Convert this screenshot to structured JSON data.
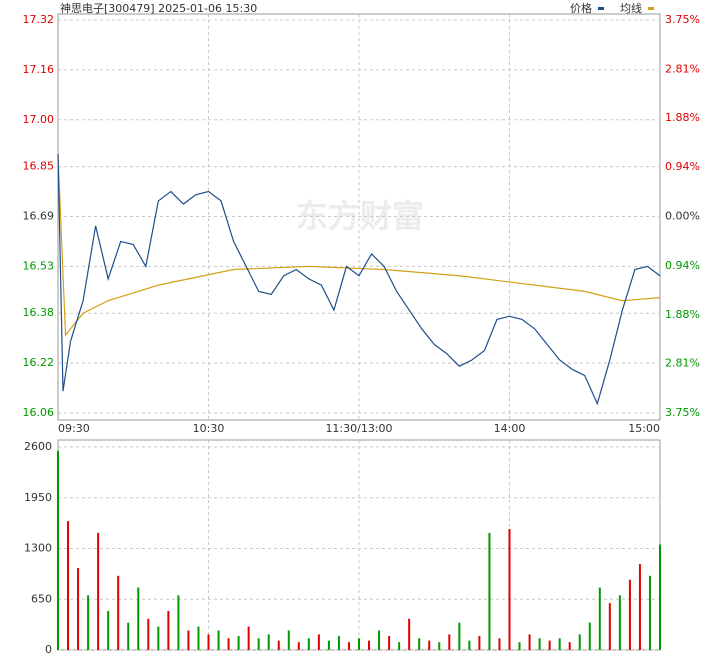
{
  "chart_data": [
    {
      "type": "line",
      "title": "神思电子[300479] 2025-01-06 15:30",
      "watermark": "东方财富",
      "up_color": "#e00000",
      "down_color": "#009900",
      "grid": true,
      "xlim": [
        0,
        240
      ],
      "xticks": [
        {
          "value": 0,
          "label": "09:30"
        },
        {
          "value": 60,
          "label": "10:30"
        },
        {
          "value": 120,
          "label": "11:30/13:00"
        },
        {
          "value": 180,
          "label": "14:00"
        },
        {
          "value": 240,
          "label": "15:00"
        }
      ],
      "ylim": [
        16.06,
        17.32
      ],
      "yticks": [
        16.06,
        16.22,
        16.38,
        16.53,
        16.69,
        16.85,
        {
          "value": 17,
          "label": "17.00"
        },
        17.16,
        17.32
      ],
      "y2lim": [
        -3.75,
        3.75
      ],
      "y2ticks": [
        {
          "value": -3.75,
          "label": "3.75%"
        },
        {
          "value": -2.81,
          "label": "2.81%"
        },
        {
          "value": -1.88,
          "label": "1.88%"
        },
        {
          "value": -0.94,
          "label": "0.94%"
        },
        {
          "value": 0,
          "label": "0.00%"
        },
        {
          "value": 0.94,
          "label": "0.94%"
        },
        {
          "value": 1.88,
          "label": "1.88%"
        },
        {
          "value": 2.81,
          "label": "2.81%"
        },
        {
          "value": 3.75,
          "label": "3.75%"
        }
      ],
      "series": [
        {
          "name": "价格",
          "color": "#1f4e8c",
          "x": [
            0,
            2,
            5,
            10,
            15,
            20,
            25,
            30,
            35,
            40,
            45,
            50,
            55,
            60,
            65,
            70,
            75,
            80,
            85,
            90,
            95,
            100,
            105,
            110,
            115,
            120,
            125,
            130,
            135,
            140,
            145,
            150,
            155,
            160,
            165,
            170,
            175,
            180,
            185,
            190,
            195,
            200,
            205,
            210,
            215,
            220,
            225,
            230,
            235,
            240
          ],
          "values": [
            16.89,
            16.13,
            16.29,
            16.42,
            16.66,
            16.49,
            16.61,
            16.6,
            16.53,
            16.74,
            16.77,
            16.73,
            16.76,
            16.77,
            16.74,
            16.61,
            16.53,
            16.45,
            16.44,
            16.5,
            16.52,
            16.49,
            16.47,
            16.39,
            16.53,
            16.5,
            16.57,
            16.53,
            16.45,
            16.39,
            16.33,
            16.28,
            16.25,
            16.21,
            16.23,
            16.26,
            16.36,
            16.37,
            16.36,
            16.33,
            16.28,
            16.23,
            16.2,
            16.18,
            16.09,
            16.23,
            16.39,
            16.52,
            16.53,
            16.5
          ]
        },
        {
          "name": "均线",
          "color": "#d4a017",
          "x": [
            0,
            3,
            10,
            20,
            40,
            70,
            100,
            130,
            160,
            190,
            210,
            225,
            240
          ],
          "values": [
            16.89,
            16.31,
            16.38,
            16.42,
            16.47,
            16.52,
            16.53,
            16.52,
            16.5,
            16.47,
            16.45,
            16.42,
            16.43
          ]
        }
      ]
    },
    {
      "type": "bar",
      "xlim": [
        0,
        240
      ],
      "ylim": [
        0,
        2600
      ],
      "yticks": [
        0,
        650,
        1300,
        1950,
        2600
      ],
      "x": [
        0,
        4,
        8,
        12,
        16,
        20,
        24,
        28,
        32,
        36,
        40,
        44,
        48,
        52,
        56,
        60,
        64,
        68,
        72,
        76,
        80,
        84,
        88,
        92,
        96,
        100,
        104,
        108,
        112,
        116,
        120,
        124,
        128,
        132,
        136,
        140,
        144,
        148,
        152,
        156,
        160,
        164,
        168,
        172,
        176,
        180,
        184,
        188,
        192,
        196,
        200,
        204,
        208,
        212,
        216,
        220,
        224,
        228,
        232,
        236,
        240
      ],
      "values": [
        2550,
        1650,
        1050,
        700,
        1500,
        500,
        950,
        350,
        800,
        400,
        300,
        500,
        700,
        250,
        300,
        200,
        250,
        150,
        180,
        300,
        150,
        200,
        120,
        250,
        100,
        150,
        200,
        120,
        180,
        100,
        150,
        120,
        250,
        180,
        100,
        400,
        150,
        120,
        100,
        200,
        350,
        120,
        180,
        1500,
        150,
        1550,
        100,
        200,
        150,
        120,
        150,
        100,
        200,
        350,
        800,
        600,
        700,
        900,
        1100,
        950,
        1350
      ],
      "colors": [
        "#009900",
        "#e00000",
        "#e00000",
        "#009900",
        "#e00000",
        "#009900",
        "#e00000",
        "#009900",
        "#009900",
        "#e00000",
        "#009900",
        "#e00000",
        "#009900",
        "#e00000",
        "#009900",
        "#e00000",
        "#009900",
        "#e00000",
        "#009900",
        "#e00000",
        "#009900",
        "#009900",
        "#e00000",
        "#009900",
        "#e00000",
        "#009900",
        "#e00000",
        "#009900",
        "#009900",
        "#e00000",
        "#009900",
        "#e00000",
        "#009900",
        "#e00000",
        "#009900",
        "#e00000",
        "#009900",
        "#e00000",
        "#009900",
        "#e00000",
        "#009900",
        "#009900",
        "#e00000",
        "#009900",
        "#e00000",
        "#e00000",
        "#009900",
        "#e00000",
        "#009900",
        "#e00000",
        "#009900",
        "#e00000",
        "#009900",
        "#009900",
        "#009900",
        "#e00000",
        "#009900",
        "#e00000",
        "#e00000",
        "#009900",
        "#009900"
      ]
    }
  ]
}
